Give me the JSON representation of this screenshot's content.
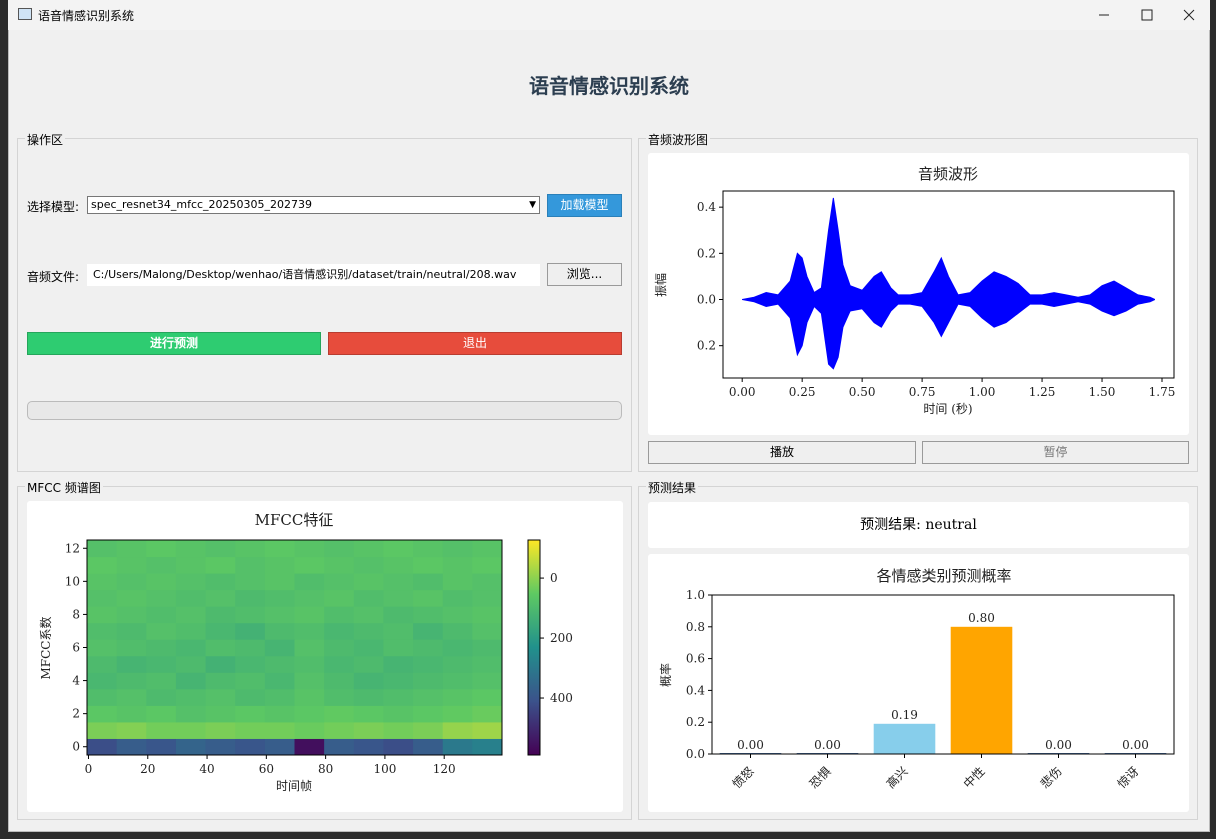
{
  "window": {
    "title": "语音情感识别系统"
  },
  "header": {
    "title": "语音情感识别系统"
  },
  "controls": {
    "group_title": "操作区",
    "model_label": "选择模型:",
    "model_value": "spec_resnet34_mfcc_20250305_202739",
    "load_button": "加载模型",
    "file_label": "音频文件:",
    "file_value": "C:/Users/Malong/Desktop/wenhao/语音情感识别/dataset/train/neutral/208.wav",
    "browse_button": "浏览...",
    "predict_button": "进行预测",
    "exit_button": "退出"
  },
  "waveform_panel": {
    "group_title": "音频波形图",
    "play_button": "播放",
    "pause_button": "暂停"
  },
  "mfcc_panel": {
    "group_title": "MFCC 频谱图"
  },
  "result_panel": {
    "group_title": "预测结果",
    "result_text": "预测结果: neutral"
  },
  "chart_data": [
    {
      "type": "area",
      "title": "音频波形",
      "xlabel": "时间 (秒)",
      "ylabel": "振幅",
      "color": "#0000ff",
      "x": [
        0,
        0.05,
        0.1,
        0.15,
        0.2,
        0.23,
        0.25,
        0.27,
        0.3,
        0.33,
        0.36,
        0.38,
        0.4,
        0.42,
        0.45,
        0.5,
        0.55,
        0.58,
        0.62,
        0.65,
        0.7,
        0.75,
        0.8,
        0.83,
        0.86,
        0.9,
        0.95,
        1.0,
        1.05,
        1.1,
        1.15,
        1.2,
        1.25,
        1.3,
        1.35,
        1.4,
        1.45,
        1.5,
        1.55,
        1.6,
        1.65,
        1.7,
        1.72
      ],
      "upper": [
        0,
        0.01,
        0.03,
        0.02,
        0.08,
        0.2,
        0.18,
        0.1,
        0.03,
        0.05,
        0.3,
        0.44,
        0.3,
        0.15,
        0.06,
        0.04,
        0.1,
        0.12,
        0.05,
        0.02,
        0.02,
        0.03,
        0.12,
        0.18,
        0.1,
        0.02,
        0.03,
        0.08,
        0.12,
        0.1,
        0.07,
        0.02,
        0.02,
        0.03,
        0.02,
        0.01,
        0.02,
        0.06,
        0.08,
        0.05,
        0.02,
        0.01,
        0
      ],
      "lower": [
        0,
        -0.01,
        -0.03,
        -0.02,
        -0.08,
        -0.24,
        -0.2,
        -0.1,
        -0.03,
        -0.06,
        -0.28,
        -0.3,
        -0.25,
        -0.12,
        -0.05,
        -0.04,
        -0.1,
        -0.12,
        -0.05,
        -0.02,
        -0.02,
        -0.03,
        -0.1,
        -0.16,
        -0.1,
        -0.02,
        -0.03,
        -0.08,
        -0.12,
        -0.1,
        -0.06,
        -0.02,
        -0.02,
        -0.03,
        -0.02,
        -0.01,
        -0.02,
        -0.05,
        -0.07,
        -0.05,
        -0.02,
        -0.01,
        0
      ],
      "xlim": [
        -0.08,
        1.8
      ],
      "ylim": [
        -0.34,
        0.47
      ],
      "xticks": [
        {
          "value": 0,
          "label": "0.00"
        },
        0.25,
        {
          "value": 0.5,
          "label": "0.50"
        },
        0.75,
        {
          "value": 1,
          "label": "1.00"
        },
        1.25,
        {
          "value": 1.5,
          "label": "1.50"
        },
        1.75
      ],
      "yticks": [
        {
          "value": -0.2,
          "label": "0.2"
        },
        {
          "value": 0,
          "label": "0.0"
        },
        0.2,
        0.4
      ]
    },
    {
      "type": "heatmap",
      "title": "MFCC特征",
      "xlabel": "时间帧",
      "ylabel": "MFCC系数",
      "xlim": [
        -0.5,
        139.5
      ],
      "ylim": [
        -0.5,
        12.5
      ],
      "zlim": [
        -590,
        127
      ],
      "xticks": [
        0,
        20,
        40,
        60,
        80,
        100,
        120
      ],
      "yticks": [
        0,
        2,
        4,
        6,
        8,
        10,
        12
      ],
      "zticks": [
        0,
        {
          "value": -200,
          "label": "200"
        },
        {
          "value": -400,
          "label": "400"
        }
      ],
      "z": [
        [
          -420,
          -380,
          -400,
          -360,
          -380,
          -400,
          -380,
          -560,
          -380,
          -400,
          -420,
          -380,
          -300,
          -280
        ],
        [
          -20,
          -10,
          -30,
          -30,
          -20,
          -30,
          -30,
          -40,
          -30,
          -20,
          -30,
          -20,
          10,
          20
        ],
        [
          -60,
          -70,
          -60,
          -80,
          -70,
          -60,
          -70,
          -60,
          -50,
          -60,
          -70,
          -60,
          -50,
          -40
        ],
        [
          -90,
          -80,
          -100,
          -90,
          -80,
          -100,
          -90,
          -70,
          -90,
          -100,
          -90,
          -80,
          -70,
          -60
        ],
        [
          -110,
          -100,
          -90,
          -120,
          -100,
          -90,
          -110,
          -80,
          -100,
          -120,
          -110,
          -100,
          -90,
          -80
        ],
        [
          -100,
          -120,
          -110,
          -100,
          -130,
          -110,
          -100,
          -90,
          -110,
          -100,
          -120,
          -110,
          -100,
          -90
        ],
        [
          -80,
          -90,
          -100,
          -110,
          -90,
          -100,
          -120,
          -80,
          -100,
          -110,
          -90,
          -100,
          -110,
          -100
        ],
        [
          -90,
          -100,
          -80,
          -90,
          -110,
          -130,
          -100,
          -90,
          -110,
          -100,
          -90,
          -120,
          -100,
          -80
        ],
        [
          -70,
          -80,
          -90,
          -80,
          -100,
          -90,
          -80,
          -70,
          -90,
          -80,
          -100,
          -90,
          -80,
          -70
        ],
        [
          -80,
          -70,
          -80,
          -90,
          -80,
          -100,
          -90,
          -80,
          -70,
          -90,
          -80,
          -70,
          -90,
          -80
        ],
        [
          -70,
          -80,
          -70,
          -80,
          -90,
          -80,
          -70,
          -90,
          -80,
          -70,
          -80,
          -90,
          -70,
          -80
        ],
        [
          -60,
          -70,
          -80,
          -70,
          -60,
          -80,
          -70,
          -60,
          -70,
          -80,
          -70,
          -60,
          -70,
          -60
        ],
        [
          -80,
          -70,
          -60,
          -70,
          -80,
          -70,
          -60,
          -70,
          -80,
          -70,
          -60,
          -70,
          -80,
          -70
        ]
      ]
    },
    {
      "type": "bar",
      "title": "各情感类别预测概率",
      "ylabel": "概率",
      "categories": [
        "愤怒",
        "恐惧",
        "高兴",
        "中性",
        "悲伤",
        "惊讶"
      ],
      "values": [
        0,
        0,
        0.19,
        0.8,
        0,
        0
      ],
      "value_labels": [
        "0.00",
        "0.00",
        "0.19",
        "0.80",
        "0.00",
        "0.00"
      ],
      "colors": [
        "#4a6fa5",
        "#4a6fa5",
        "#87ceeb",
        "#ffa500",
        "#4a6fa5",
        "#4a6fa5"
      ],
      "ylim": [
        0,
        1
      ],
      "yticks": [
        {
          "value": 0,
          "label": "0.0"
        },
        0.2,
        0.4,
        0.6,
        0.8,
        {
          "value": 1,
          "label": "1.0"
        }
      ]
    }
  ]
}
